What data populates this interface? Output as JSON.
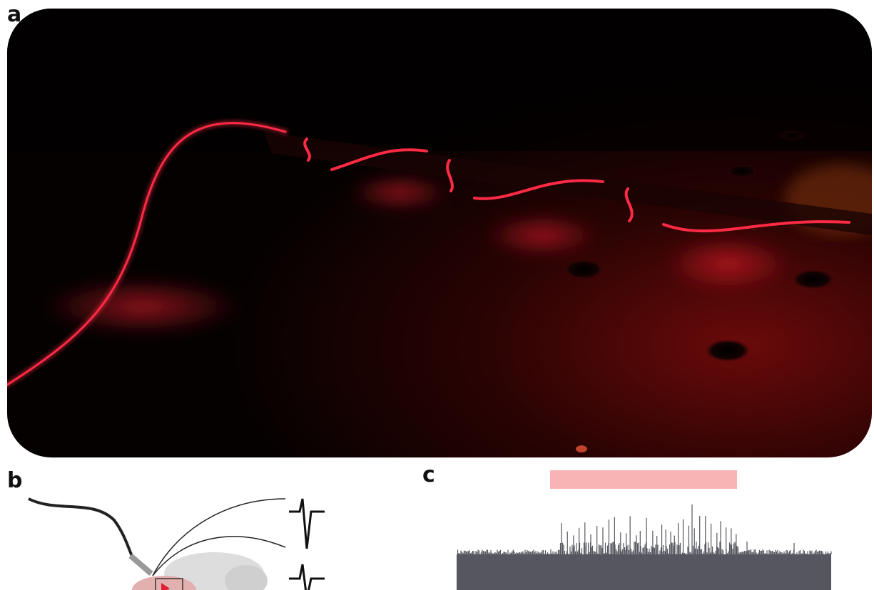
{
  "figure": {
    "panels": [
      {
        "label": "a"
      },
      {
        "label": "b"
      },
      {
        "label": "c"
      }
    ]
  }
}
